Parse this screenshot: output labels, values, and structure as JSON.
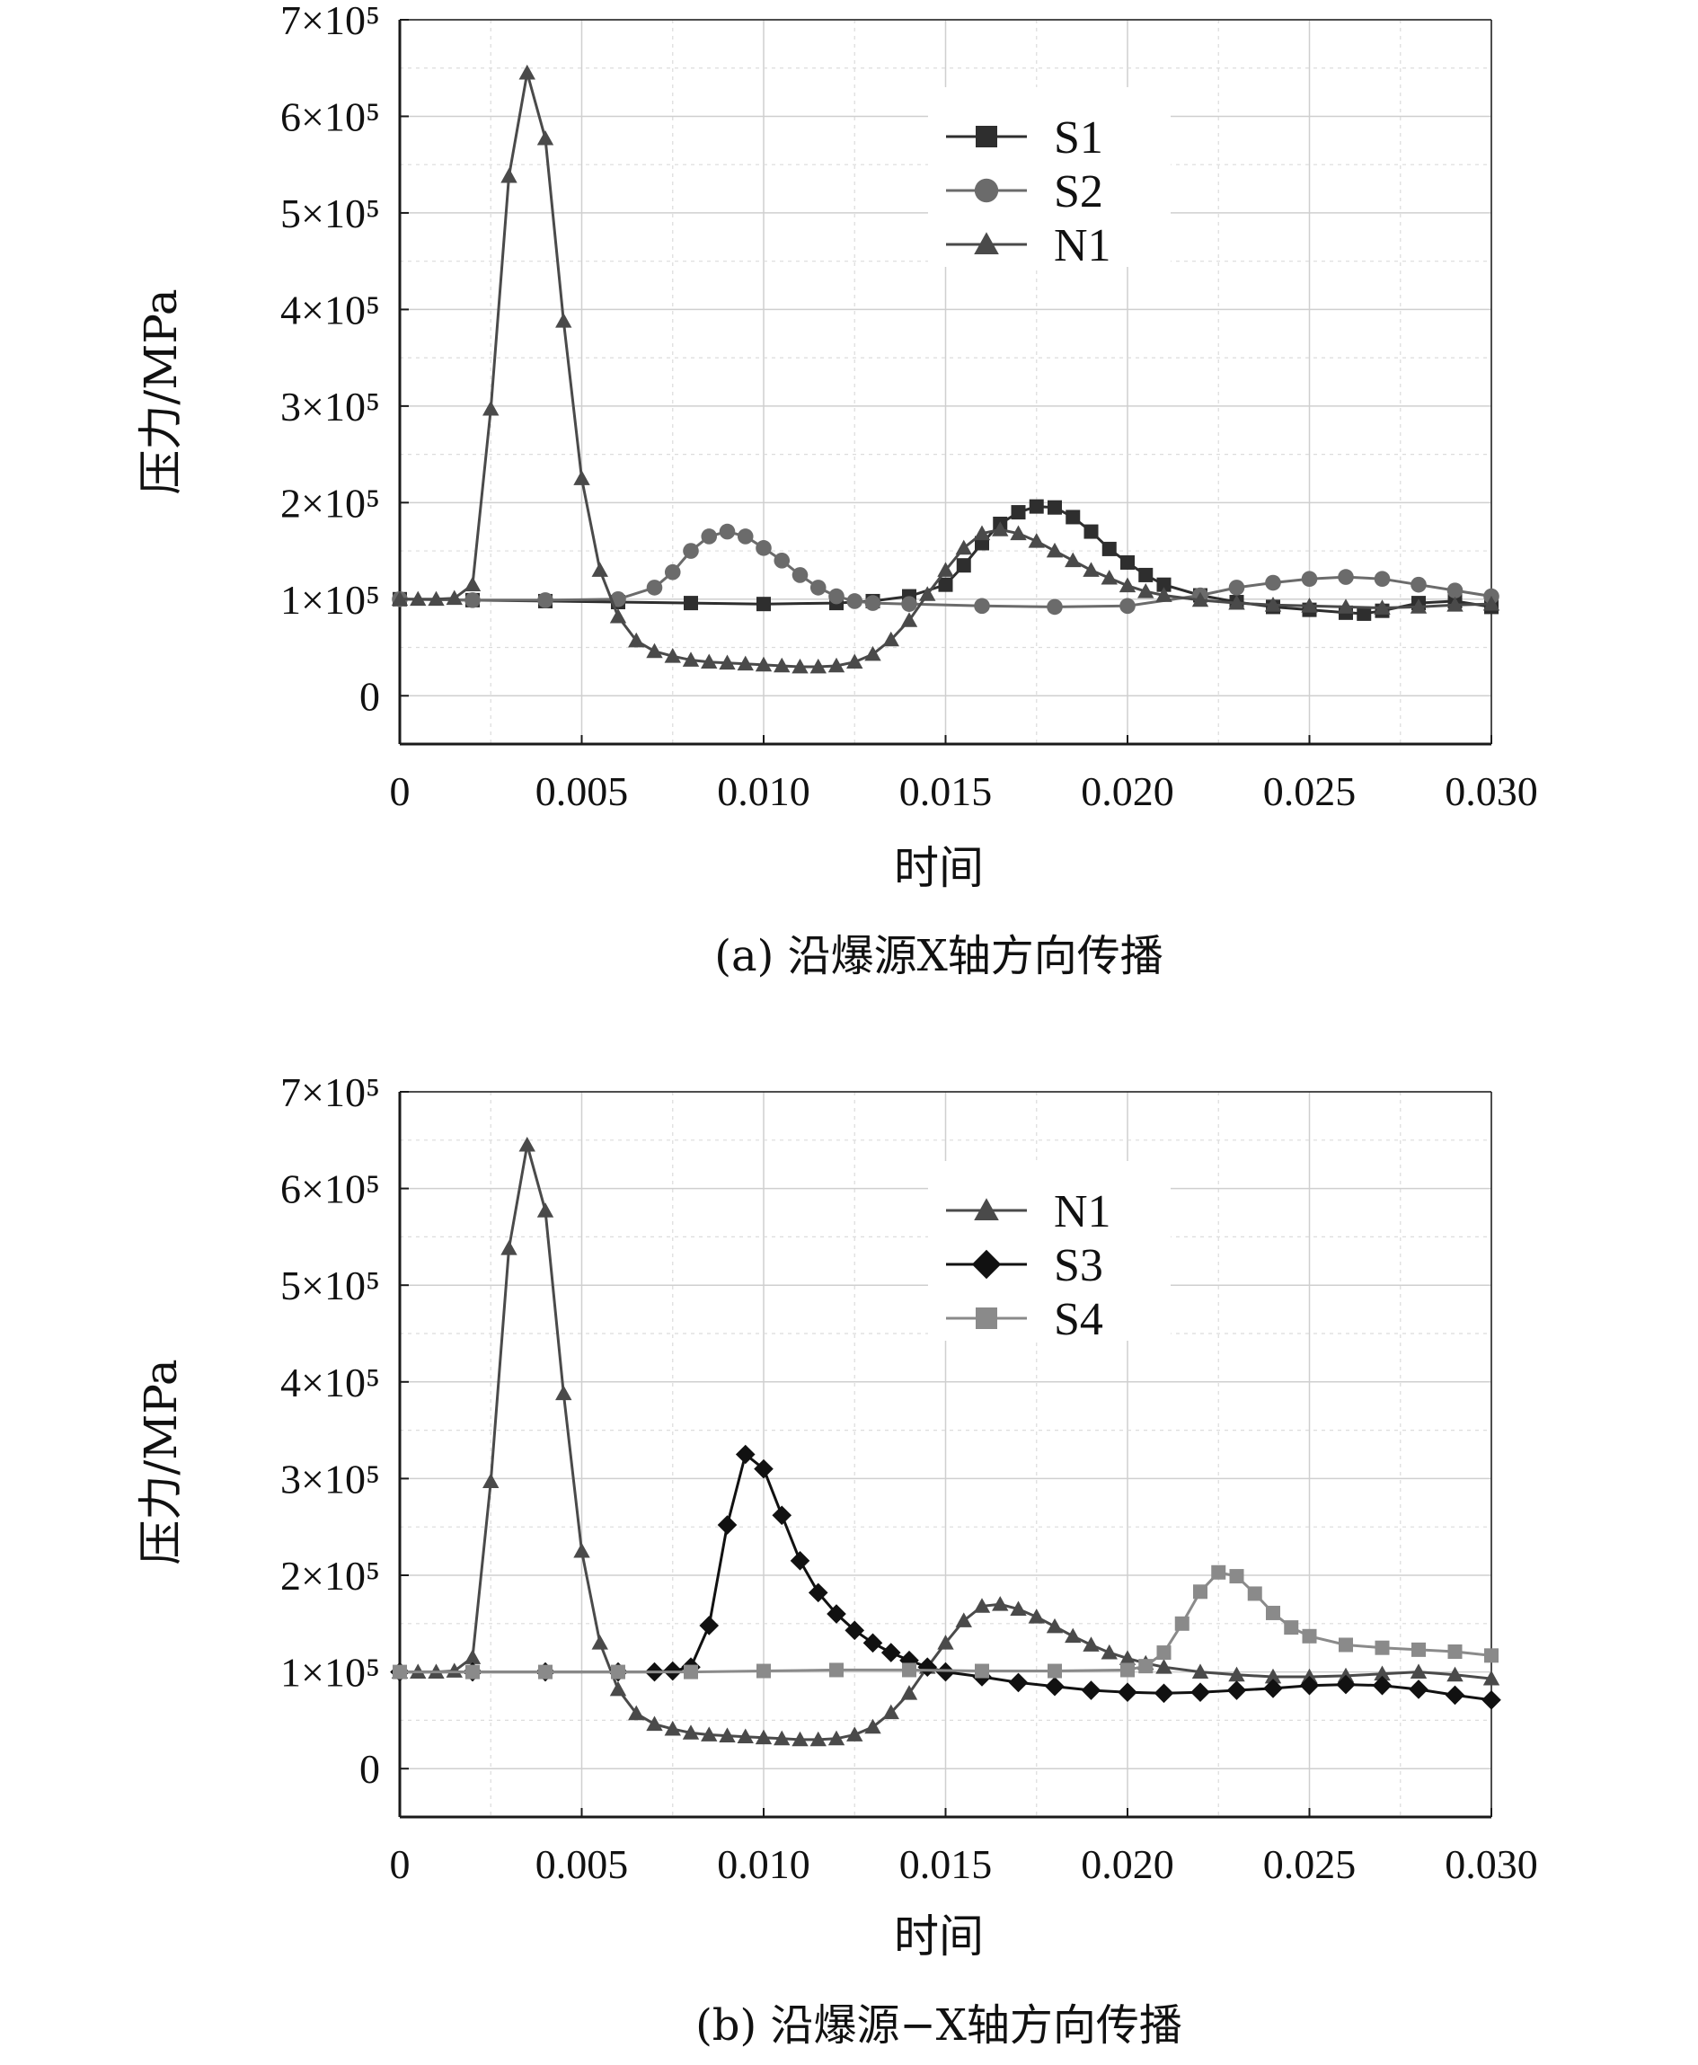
{
  "chart_data": [
    {
      "type": "line",
      "caption": "(a) 沿爆源X轴方向传播",
      "xlabel": "时间",
      "ylabel": "压力/MPa",
      "xlim": [
        0,
        0.03
      ],
      "ylim": [
        -50000,
        700000
      ],
      "xticks": [
        "0",
        "0.005",
        "0.010",
        "0.015",
        "0.020",
        "0.025",
        "0.030"
      ],
      "yticks": [
        "0",
        "1×10⁵",
        "2×10⁵",
        "3×10⁵",
        "4×10⁵",
        "5×10⁵",
        "6×10⁵",
        "7×10⁵"
      ],
      "grid": true,
      "legend_position": "top-right",
      "series": [
        {
          "name": "S1",
          "marker": "square",
          "color": "#2e2e2e",
          "x": [
            0,
            0.002,
            0.004,
            0.006,
            0.008,
            0.01,
            0.012,
            0.013,
            0.014,
            0.015,
            0.0155,
            0.016,
            0.0165,
            0.017,
            0.0175,
            0.018,
            0.0185,
            0.019,
            0.0195,
            0.02,
            0.0205,
            0.021,
            0.022,
            0.023,
            0.024,
            0.025,
            0.026,
            0.0265,
            0.027,
            0.028,
            0.029,
            0.03
          ],
          "y": [
            100000,
            99000,
            98000,
            97000,
            96000,
            95000,
            96000,
            98000,
            103000,
            115000,
            135000,
            158000,
            178000,
            190000,
            196000,
            195000,
            185000,
            170000,
            152000,
            138000,
            125000,
            115000,
            104000,
            97000,
            92000,
            89000,
            86000,
            85000,
            88000,
            96000,
            98000,
            92000
          ]
        },
        {
          "name": "S2",
          "marker": "circle",
          "color": "#6b6b6b",
          "x": [
            0,
            0.002,
            0.004,
            0.006,
            0.007,
            0.0075,
            0.008,
            0.0085,
            0.009,
            0.0095,
            0.01,
            0.0105,
            0.011,
            0.0115,
            0.012,
            0.0125,
            0.013,
            0.014,
            0.016,
            0.018,
            0.02,
            0.022,
            0.023,
            0.024,
            0.025,
            0.026,
            0.027,
            0.028,
            0.029,
            0.03
          ],
          "y": [
            100000,
            99000,
            99000,
            100000,
            112000,
            128000,
            150000,
            165000,
            170000,
            165000,
            153000,
            140000,
            125000,
            112000,
            103000,
            98000,
            96000,
            95000,
            93000,
            92000,
            93000,
            104000,
            112000,
            117000,
            121000,
            123000,
            121000,
            115000,
            109000,
            103000
          ]
        },
        {
          "name": "N1",
          "marker": "triangle",
          "color": "#4a4a4a",
          "x": [
            0,
            0.0005,
            0.001,
            0.0015,
            0.002,
            0.0025,
            0.003,
            0.0035,
            0.004,
            0.0045,
            0.005,
            0.0055,
            0.006,
            0.0065,
            0.007,
            0.0075,
            0.008,
            0.0085,
            0.009,
            0.0095,
            0.01,
            0.0105,
            0.011,
            0.0115,
            0.012,
            0.0125,
            0.013,
            0.0135,
            0.014,
            0.0145,
            0.015,
            0.0155,
            0.016,
            0.0165,
            0.017,
            0.0175,
            0.018,
            0.0185,
            0.019,
            0.0195,
            0.02,
            0.0205,
            0.021,
            0.022,
            0.023,
            0.024,
            0.025,
            0.026,
            0.027,
            0.028,
            0.029,
            0.03
          ],
          "y": [
            100000,
            100000,
            100000,
            101000,
            115000,
            297000,
            538000,
            645000,
            577000,
            388000,
            225000,
            130000,
            82000,
            57000,
            46000,
            41000,
            37000,
            35000,
            34000,
            33000,
            32000,
            31000,
            30000,
            30000,
            31000,
            35000,
            43000,
            58000,
            78000,
            105000,
            130000,
            153000,
            168000,
            172000,
            168000,
            160000,
            150000,
            140000,
            130000,
            122000,
            114000,
            108000,
            104000,
            99000,
            96000,
            94000,
            93000,
            92000,
            91000,
            92000,
            94000,
            95000
          ]
        }
      ]
    },
    {
      "type": "line",
      "caption": "(b) 沿爆源−X轴方向传播",
      "xlabel": "时间",
      "ylabel": "压力/MPa",
      "xlim": [
        0,
        0.03
      ],
      "ylim": [
        -50000,
        700000
      ],
      "xticks": [
        "0",
        "0.005",
        "0.010",
        "0.015",
        "0.020",
        "0.025",
        "0.030"
      ],
      "yticks": [
        "0",
        "1×10⁵",
        "2×10⁵",
        "3×10⁵",
        "4×10⁵",
        "5×10⁵",
        "6×10⁵",
        "7×10⁵"
      ],
      "grid": true,
      "legend_position": "top-right",
      "series": [
        {
          "name": "N1",
          "marker": "triangle",
          "color": "#4a4a4a",
          "x": [
            0,
            0.0005,
            0.001,
            0.0015,
            0.002,
            0.0025,
            0.003,
            0.0035,
            0.004,
            0.0045,
            0.005,
            0.0055,
            0.006,
            0.0065,
            0.007,
            0.0075,
            0.008,
            0.0085,
            0.009,
            0.0095,
            0.01,
            0.0105,
            0.011,
            0.0115,
            0.012,
            0.0125,
            0.013,
            0.0135,
            0.014,
            0.0145,
            0.015,
            0.0155,
            0.016,
            0.0165,
            0.017,
            0.0175,
            0.018,
            0.0185,
            0.019,
            0.0195,
            0.02,
            0.0205,
            0.021,
            0.022,
            0.023,
            0.024,
            0.025,
            0.026,
            0.027,
            0.028,
            0.029,
            0.03
          ],
          "y": [
            100000,
            100000,
            100000,
            101000,
            115000,
            297000,
            538000,
            645000,
            577000,
            388000,
            225000,
            130000,
            82000,
            57000,
            46000,
            41000,
            37000,
            35000,
            34000,
            33000,
            32000,
            31000,
            30000,
            30000,
            31000,
            35000,
            43000,
            58000,
            78000,
            105000,
            130000,
            153000,
            168000,
            170000,
            165000,
            157000,
            147000,
            137000,
            128000,
            120000,
            114000,
            109000,
            105000,
            100000,
            97000,
            95000,
            95000,
            96000,
            98000,
            100000,
            97000,
            93000
          ]
        },
        {
          "name": "S3",
          "marker": "diamond",
          "color": "#111111",
          "x": [
            0,
            0.002,
            0.004,
            0.006,
            0.007,
            0.0075,
            0.008,
            0.0085,
            0.009,
            0.0095,
            0.01,
            0.0105,
            0.011,
            0.0115,
            0.012,
            0.0125,
            0.013,
            0.0135,
            0.014,
            0.0145,
            0.015,
            0.016,
            0.017,
            0.018,
            0.019,
            0.02,
            0.021,
            0.022,
            0.023,
            0.024,
            0.025,
            0.026,
            0.027,
            0.028,
            0.029,
            0.03
          ],
          "y": [
            100000,
            100000,
            100000,
            100000,
            100000,
            101000,
            105000,
            148000,
            252000,
            325000,
            310000,
            262000,
            215000,
            182000,
            160000,
            143000,
            130000,
            120000,
            112000,
            105000,
            100000,
            95000,
            89000,
            85000,
            81000,
            79000,
            78000,
            79000,
            81000,
            83000,
            86000,
            87000,
            86000,
            82000,
            76000,
            71000
          ]
        },
        {
          "name": "S4",
          "marker": "square",
          "color": "#8a8a8a",
          "x": [
            0,
            0.002,
            0.004,
            0.006,
            0.008,
            0.01,
            0.012,
            0.014,
            0.016,
            0.018,
            0.02,
            0.0205,
            0.021,
            0.0215,
            0.022,
            0.0225,
            0.023,
            0.0235,
            0.024,
            0.0245,
            0.025,
            0.026,
            0.027,
            0.028,
            0.029,
            0.03
          ],
          "y": [
            100000,
            100000,
            100000,
            100000,
            100000,
            101000,
            102000,
            102000,
            101000,
            101000,
            102000,
            106000,
            120000,
            150000,
            183000,
            203000,
            199000,
            181000,
            161000,
            146000,
            137000,
            128000,
            125000,
            123000,
            121000,
            117000
          ]
        }
      ]
    }
  ]
}
